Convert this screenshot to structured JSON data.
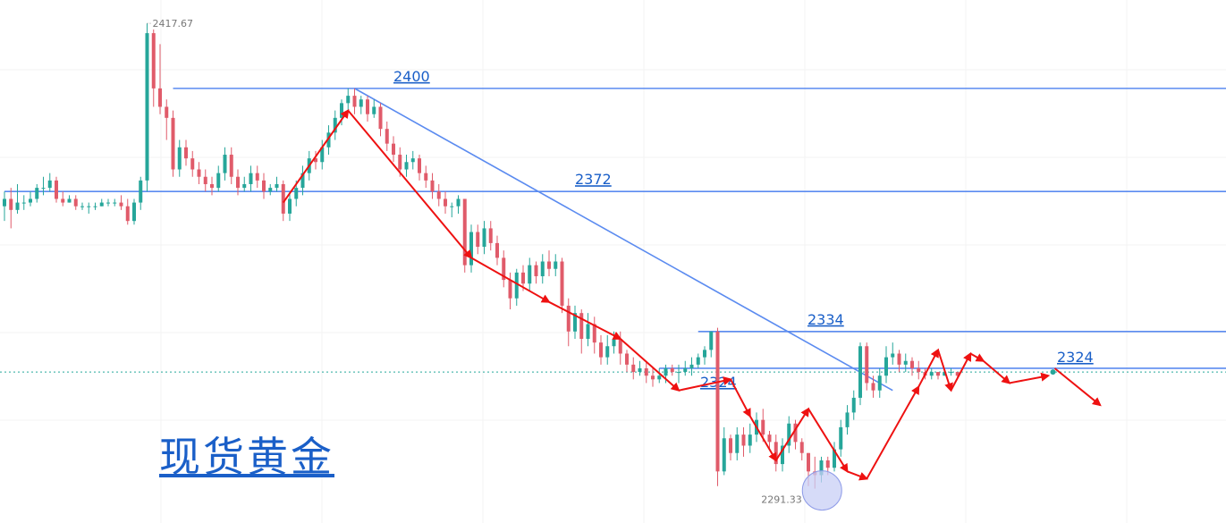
{
  "chart_data": {
    "type": "candlestick",
    "title": "现货黄金",
    "ylim": [
      2282,
      2424
    ],
    "current_price": 2323,
    "colors": {
      "up": "#26a69a",
      "down": "#e05b6a",
      "level": "#5b8bf0",
      "arrow": "#ee1111",
      "label": "#1a5fc8",
      "grid": "#f3f3f3",
      "low_marker": "#c8cff5"
    },
    "levels": [
      {
        "value": 2400,
        "label": "2400",
        "from_index": 26
      },
      {
        "value": 2372,
        "label": "2372",
        "from_index": 0
      },
      {
        "value": 2334,
        "label": "2334",
        "from_index": 107
      },
      {
        "value": 2324,
        "label": "2324",
        "from_index": 101,
        "label_left": "2324",
        "label_right": "2324"
      }
    ],
    "annotations": [
      {
        "kind": "peak",
        "value": 2417.67,
        "label": "2417.67"
      },
      {
        "kind": "low",
        "value": 2291.33,
        "label": "2291.33"
      }
    ],
    "trendline": {
      "from": [
        54,
        2400
      ],
      "to": [
        137,
        2318
      ]
    },
    "arrow_path": [
      [
        43,
        2369
      ],
      [
        53,
        2394
      ],
      [
        72,
        2354
      ],
      [
        84,
        2342
      ],
      [
        95,
        2332
      ],
      [
        104,
        2318
      ],
      [
        112,
        2321
      ],
      [
        115,
        2311
      ],
      [
        119,
        2299
      ],
      [
        124,
        2313
      ],
      [
        130,
        2296
      ],
      [
        133,
        2294
      ],
      [
        141,
        2319
      ],
      [
        144,
        2329
      ],
      [
        146,
        2318
      ],
      [
        149,
        2328
      ],
      [
        151,
        2326
      ],
      [
        155,
        2320
      ],
      [
        161,
        2322
      ]
    ],
    "forecast_arrow": {
      "from": [
        162,
        2324
      ],
      "to": [
        169,
        2314
      ]
    },
    "candles": [
      [
        2368,
        2370,
        2364,
        2372
      ],
      [
        2370,
        2367,
        2362,
        2373
      ],
      [
        2367,
        2369,
        2366,
        2374
      ],
      [
        2369,
        2369,
        2367,
        2371
      ],
      [
        2369,
        2370,
        2368,
        2372
      ],
      [
        2370,
        2373,
        2369,
        2374
      ],
      [
        2373,
        2373,
        2371,
        2376
      ],
      [
        2373,
        2375,
        2372,
        2377
      ],
      [
        2375,
        2370,
        2369,
        2376
      ],
      [
        2370,
        2369,
        2368,
        2372
      ],
      [
        2369,
        2370,
        2369,
        2371
      ],
      [
        2370,
        2368,
        2367,
        2371
      ],
      [
        2368,
        2368,
        2367,
        2369
      ],
      [
        2368,
        2368,
        2366,
        2369
      ],
      [
        2368,
        2368,
        2367,
        2369
      ],
      [
        2368,
        2369,
        2368,
        2370
      ],
      [
        2369,
        2369,
        2368,
        2370
      ],
      [
        2369,
        2369,
        2368,
        2370
      ],
      [
        2369,
        2368,
        2367,
        2371
      ],
      [
        2368,
        2364,
        2363,
        2370
      ],
      [
        2364,
        2369,
        2363,
        2370
      ],
      [
        2369,
        2375,
        2367,
        2376
      ],
      [
        2375,
        2415,
        2372,
        2417.67
      ],
      [
        2415,
        2400,
        2395,
        2416
      ],
      [
        2400,
        2395,
        2393,
        2412
      ],
      [
        2395,
        2392,
        2386,
        2397
      ],
      [
        2392,
        2378,
        2376,
        2394
      ],
      [
        2378,
        2384,
        2376,
        2386
      ],
      [
        2384,
        2381,
        2379,
        2386
      ],
      [
        2381,
        2378,
        2376,
        2383
      ],
      [
        2378,
        2376,
        2374,
        2380
      ],
      [
        2376,
        2374,
        2372,
        2378
      ],
      [
        2374,
        2373,
        2371,
        2376
      ],
      [
        2373,
        2377,
        2372,
        2379
      ],
      [
        2377,
        2382,
        2375,
        2384
      ],
      [
        2382,
        2376,
        2374,
        2384
      ],
      [
        2376,
        2373,
        2371,
        2378
      ],
      [
        2373,
        2374,
        2372,
        2376
      ],
      [
        2374,
        2377,
        2372,
        2379
      ],
      [
        2377,
        2375,
        2373,
        2379
      ],
      [
        2375,
        2372,
        2370,
        2377
      ],
      [
        2372,
        2373,
        2371,
        2374
      ],
      [
        2373,
        2374,
        2372,
        2376
      ],
      [
        2374,
        2366,
        2364,
        2375
      ],
      [
        2366,
        2370,
        2364,
        2372
      ],
      [
        2370,
        2373,
        2368,
        2375
      ],
      [
        2373,
        2377,
        2371,
        2379
      ],
      [
        2377,
        2381,
        2375,
        2383
      ],
      [
        2381,
        2380,
        2378,
        2383
      ],
      [
        2380,
        2384,
        2378,
        2386
      ],
      [
        2384,
        2388,
        2382,
        2390
      ],
      [
        2388,
        2392,
        2386,
        2394
      ],
      [
        2392,
        2396,
        2390,
        2397
      ],
      [
        2396,
        2398,
        2394,
        2400
      ],
      [
        2398,
        2395,
        2393,
        2400
      ],
      [
        2395,
        2397,
        2393,
        2398
      ],
      [
        2397,
        2393,
        2391,
        2398
      ],
      [
        2393,
        2395,
        2392,
        2397
      ],
      [
        2395,
        2389,
        2387,
        2396
      ],
      [
        2389,
        2385,
        2383,
        2391
      ],
      [
        2385,
        2382,
        2380,
        2387
      ],
      [
        2382,
        2378,
        2376,
        2384
      ],
      [
        2378,
        2380,
        2376,
        2382
      ],
      [
        2380,
        2381,
        2378,
        2383
      ],
      [
        2381,
        2377,
        2375,
        2382
      ],
      [
        2377,
        2375,
        2373,
        2379
      ],
      [
        2375,
        2372,
        2370,
        2377
      ],
      [
        2372,
        2370,
        2368,
        2374
      ],
      [
        2370,
        2368,
        2366,
        2372
      ],
      [
        2368,
        2368,
        2365,
        2369
      ],
      [
        2368,
        2370,
        2366,
        2371
      ],
      [
        2370,
        2352,
        2350,
        2370
      ],
      [
        2352,
        2361,
        2350,
        2363
      ],
      [
        2361,
        2357,
        2355,
        2363
      ],
      [
        2357,
        2362,
        2355,
        2364
      ],
      [
        2362,
        2358,
        2356,
        2364
      ],
      [
        2358,
        2354,
        2352,
        2360
      ],
      [
        2354,
        2348,
        2346,
        2356
      ],
      [
        2348,
        2343,
        2340,
        2350
      ],
      [
        2343,
        2350,
        2341,
        2351
      ],
      [
        2350,
        2347,
        2345,
        2352
      ],
      [
        2347,
        2352,
        2345,
        2354
      ],
      [
        2352,
        2349,
        2347,
        2353
      ],
      [
        2349,
        2353,
        2347,
        2355
      ],
      [
        2353,
        2351,
        2349,
        2356
      ],
      [
        2351,
        2353,
        2349,
        2355
      ],
      [
        2353,
        2341,
        2339,
        2354
      ],
      [
        2341,
        2334,
        2330,
        2343
      ],
      [
        2334,
        2339,
        2332,
        2341
      ],
      [
        2339,
        2332,
        2328,
        2340
      ],
      [
        2332,
        2336,
        2330,
        2339
      ],
      [
        2336,
        2331,
        2328,
        2338
      ],
      [
        2331,
        2327,
        2325,
        2333
      ],
      [
        2327,
        2330,
        2325,
        2333
      ],
      [
        2330,
        2332,
        2328,
        2334
      ],
      [
        2332,
        2328,
        2325,
        2334
      ],
      [
        2328,
        2325,
        2323,
        2329
      ],
      [
        2325,
        2323,
        2321,
        2327
      ],
      [
        2323,
        2324,
        2322,
        2326
      ],
      [
        2324,
        2322,
        2320,
        2326
      ],
      [
        2322,
        2321,
        2319,
        2324
      ],
      [
        2321,
        2322,
        2320,
        2324
      ],
      [
        2322,
        2324,
        2320,
        2325
      ],
      [
        2324,
        2323,
        2322,
        2325
      ],
      [
        2323,
        2323,
        2320,
        2325
      ],
      [
        2323,
        2324,
        2322,
        2326
      ],
      [
        2324,
        2325,
        2322,
        2327
      ],
      [
        2325,
        2327,
        2324,
        2328
      ],
      [
        2327,
        2329,
        2325,
        2330
      ],
      [
        2329,
        2334,
        2327,
        2334
      ],
      [
        2334,
        2296,
        2292,
        2335
      ],
      [
        2296,
        2305,
        2295,
        2308
      ],
      [
        2305,
        2301,
        2299,
        2306
      ],
      [
        2301,
        2306,
        2299,
        2308
      ],
      [
        2306,
        2303,
        2300,
        2308
      ],
      [
        2303,
        2306,
        2301,
        2309
      ],
      [
        2306,
        2310,
        2304,
        2312
      ],
      [
        2310,
        2306,
        2304,
        2313
      ],
      [
        2306,
        2304,
        2302,
        2307
      ],
      [
        2304,
        2298,
        2296,
        2306
      ],
      [
        2298,
        2303,
        2296,
        2305
      ],
      [
        2303,
        2309,
        2301,
        2311
      ],
      [
        2309,
        2304,
        2302,
        2310
      ],
      [
        2304,
        2301,
        2299,
        2305
      ],
      [
        2301,
        2296,
        2292,
        2301
      ],
      [
        2296,
        2295,
        2291.33,
        2300
      ],
      [
        2295,
        2299,
        2293,
        2300
      ],
      [
        2299,
        2297,
        2295,
        2300
      ],
      [
        2297,
        2302,
        2296,
        2304
      ],
      [
        2302,
        2308,
        2300,
        2310
      ],
      [
        2308,
        2312,
        2306,
        2314
      ],
      [
        2312,
        2316,
        2310,
        2318
      ],
      [
        2316,
        2330,
        2314,
        2331
      ],
      [
        2330,
        2320,
        2318,
        2331
      ],
      [
        2320,
        2318,
        2316,
        2322
      ],
      [
        2318,
        2322,
        2316,
        2324
      ],
      [
        2322,
        2327,
        2320,
        2330
      ],
      [
        2327,
        2328,
        2325,
        2331
      ],
      [
        2328,
        2325,
        2323,
        2329
      ],
      [
        2325,
        2326,
        2323,
        2328
      ],
      [
        2326,
        2324,
        2322,
        2327
      ],
      [
        2324,
        2323,
        2321,
        2326
      ],
      [
        2323,
        2322,
        2321,
        2324
      ],
      [
        2322,
        2323,
        2321,
        2324
      ],
      [
        2323,
        2322,
        2321,
        2323
      ],
      [
        2322,
        2323,
        2322,
        2324
      ],
      [
        2323,
        2323,
        2322,
        2324
      ],
      [
        2323,
        2322,
        2321,
        2323
      ]
    ]
  }
}
